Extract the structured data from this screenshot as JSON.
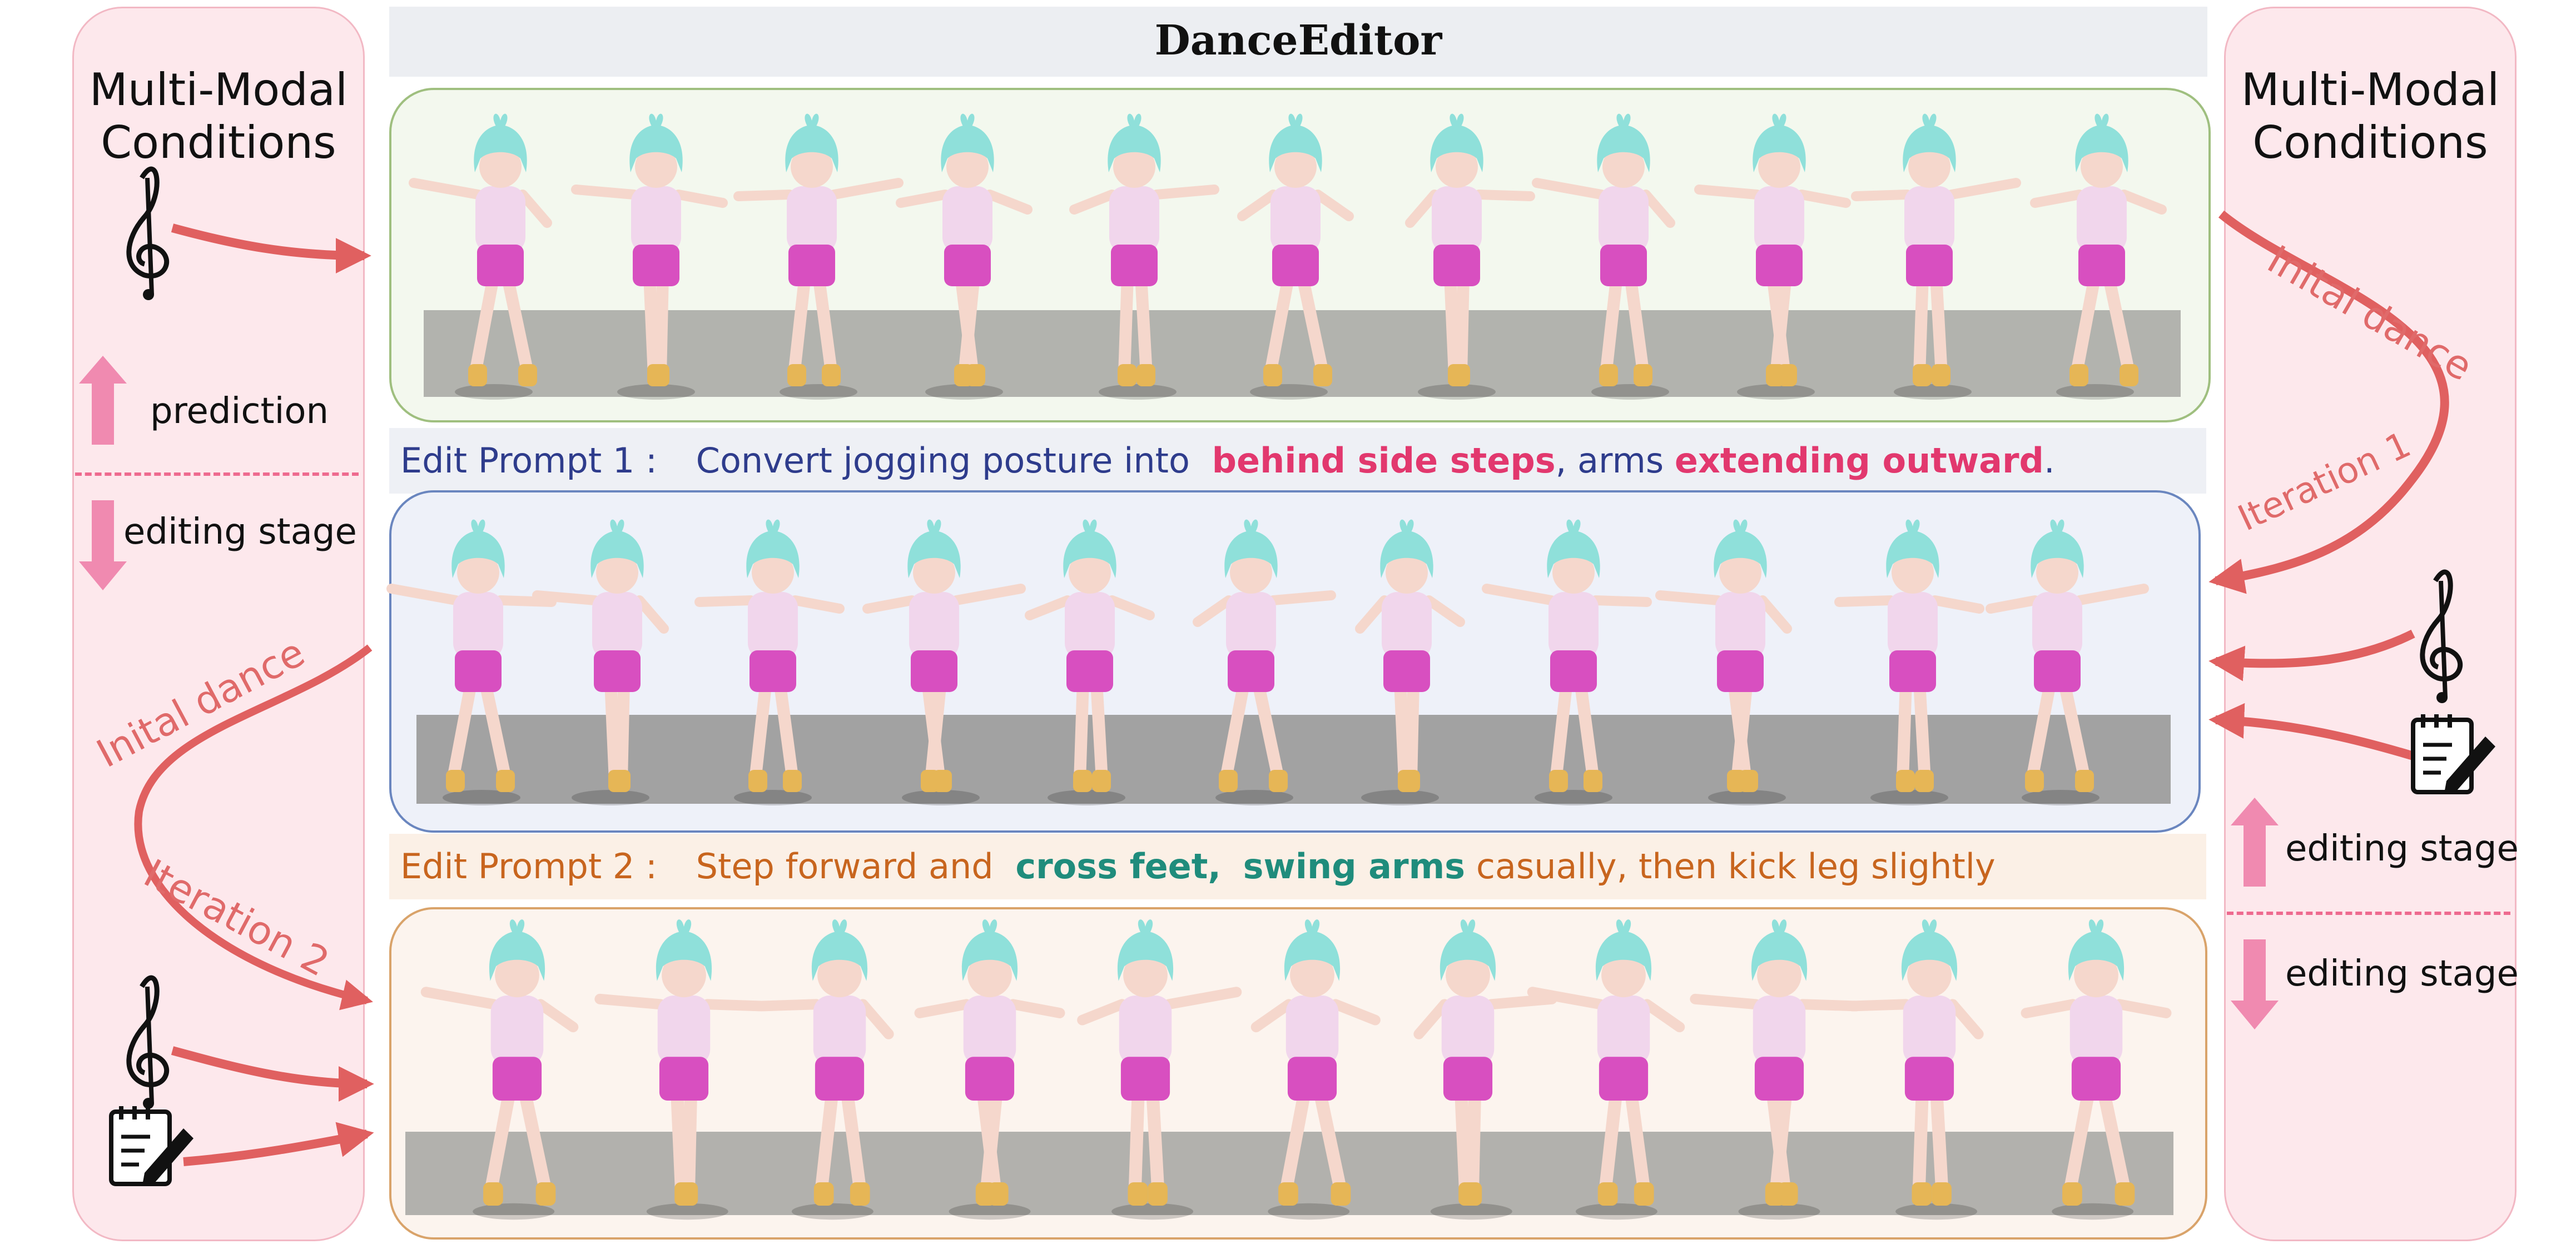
{
  "title": "DanceEditor",
  "left_panel": {
    "title_line1": "Multi-Modal",
    "title_line2": "Conditions",
    "prediction_label": "prediction",
    "editing_label": "editing stage",
    "curve_label": "Inital dance",
    "iteration_label": "Iteration 2"
  },
  "right_panel": {
    "title_line1": "Multi-Modal",
    "title_line2": "Conditions",
    "curve_label": "Inital dance",
    "iteration_label": "Iteration 1",
    "editing_label_up": "editing stage",
    "editing_label_down": "editing stage"
  },
  "prompt1": {
    "prefix": "Edit Prompt 1 :",
    "t1": "Convert jogging posture into",
    "h1": "behind side steps",
    "t2": ", arms",
    "h2": "extending outward",
    "t3": "."
  },
  "prompt2": {
    "prefix": "Edit Prompt 2 :",
    "t1": "Step forward and",
    "h1": "cross feet,",
    "h2": "swing arms",
    "t2": "casually, then kick leg slightly"
  },
  "colors": {
    "panel1_border": "#9fbf7f",
    "panel1_bg": "#f3f8ee",
    "panel2_border": "#6a86bf",
    "panel2_bg": "#eef1f9",
    "panel3_border": "#d9a36a",
    "panel3_bg": "#fcf4ee",
    "prompt1_text": "#2e3c8c",
    "prompt1_highlight": "#e2386e",
    "prompt2_text": "#c8651e",
    "prompt2_highlight": "#1f8c7c",
    "arrow": "#e06060",
    "hair": "#8fe0da",
    "shirt": "#f1d6ec",
    "shorts": "#d84fc0",
    "skin": "#f5d7cc",
    "shoes": "#e6b656"
  },
  "icons": [
    "treble-clef-icon",
    "edit-note-icon",
    "arrow-up-icon",
    "arrow-down-icon"
  ]
}
